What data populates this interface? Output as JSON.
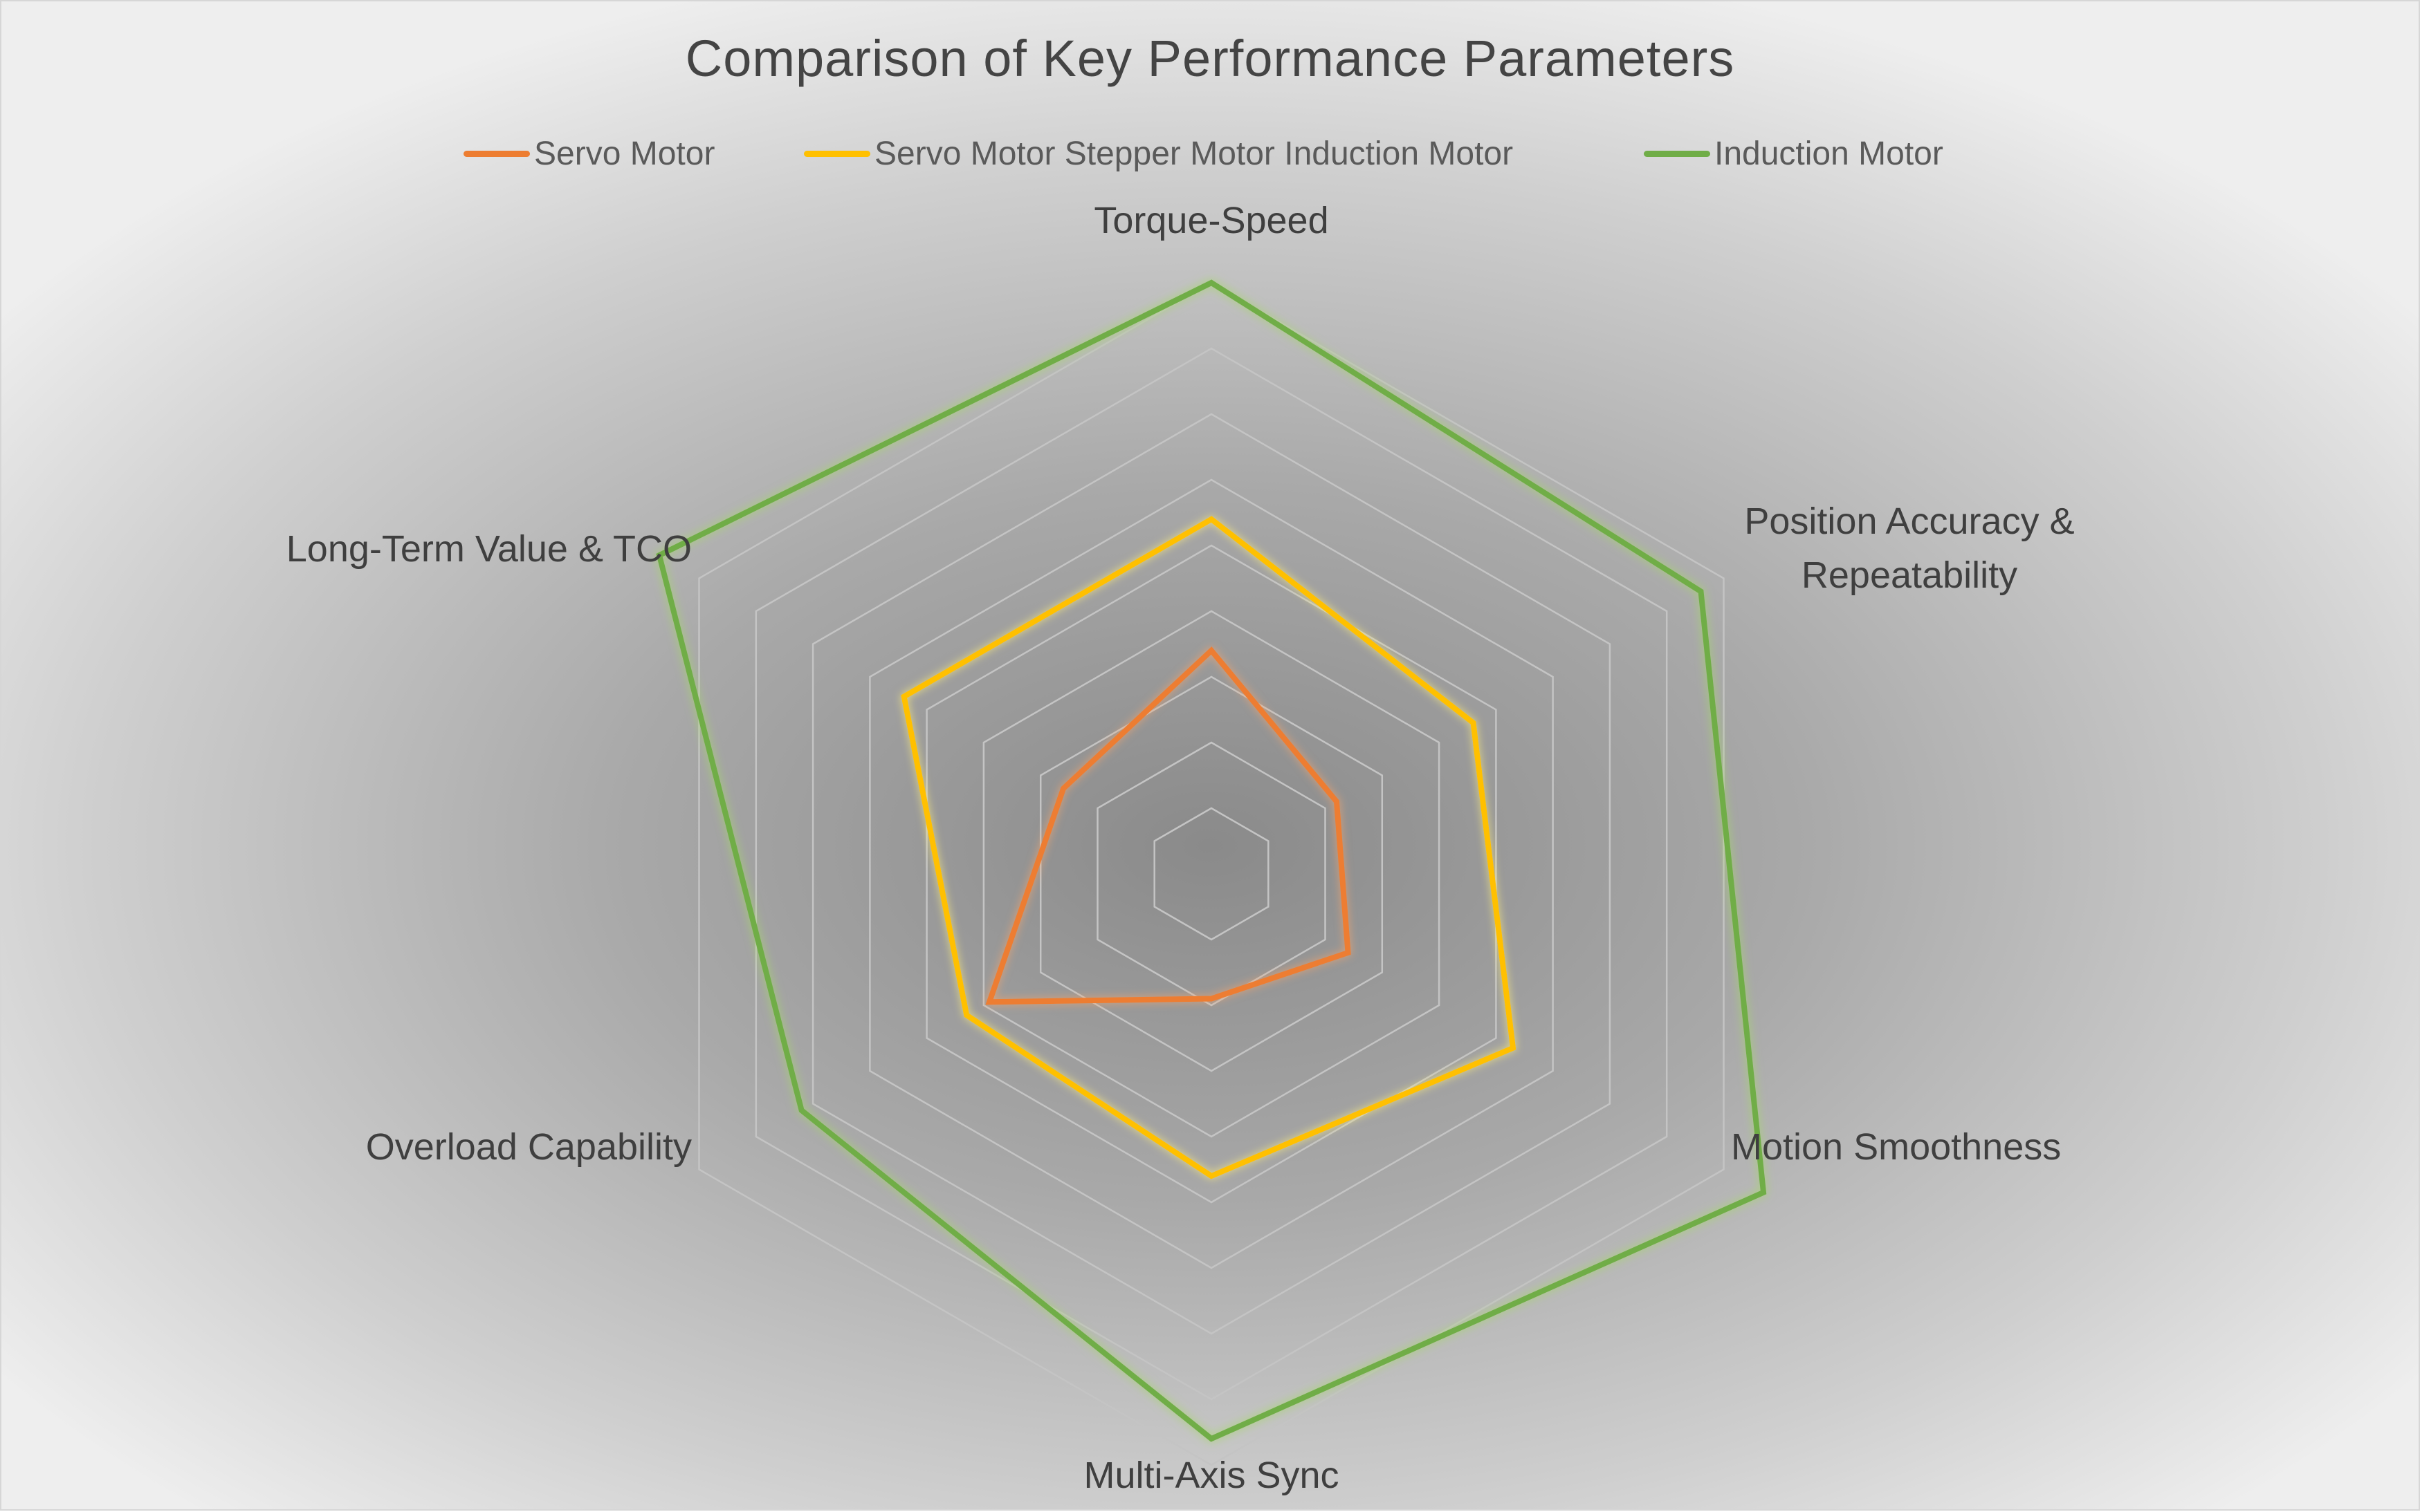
{
  "chart_data": {
    "type": "radar",
    "title": "Comparison of Key Performance Parameters",
    "categories": [
      [
        "Torque-Speed"
      ],
      [
        "Position Accuracy &",
        "Repeatability"
      ],
      [
        "Motion Smoothness"
      ],
      [
        "Multi-Axis Sync"
      ],
      [
        "Overload Capability"
      ],
      [
        "Long-Term Value & TCO"
      ]
    ],
    "rlim": [
      0,
      9
    ],
    "rings": 9,
    "grid": true,
    "legend_position": "top",
    "series": [
      {
        "name": "Servo Motor",
        "color": "#ED7D31",
        "values": [
          3.4,
          2.2,
          2.4,
          1.9,
          3.9,
          2.6
        ]
      },
      {
        "name": "Servo Motor Stepper Motor Induction Motor",
        "color": "#FFC000",
        "values": [
          5.4,
          4.6,
          5.3,
          4.6,
          4.3,
          5.4
        ]
      },
      {
        "name": "Induction Motor",
        "color": "#70AD47",
        "values": [
          9.0,
          8.6,
          9.7,
          8.6,
          7.2,
          9.7
        ]
      }
    ]
  }
}
